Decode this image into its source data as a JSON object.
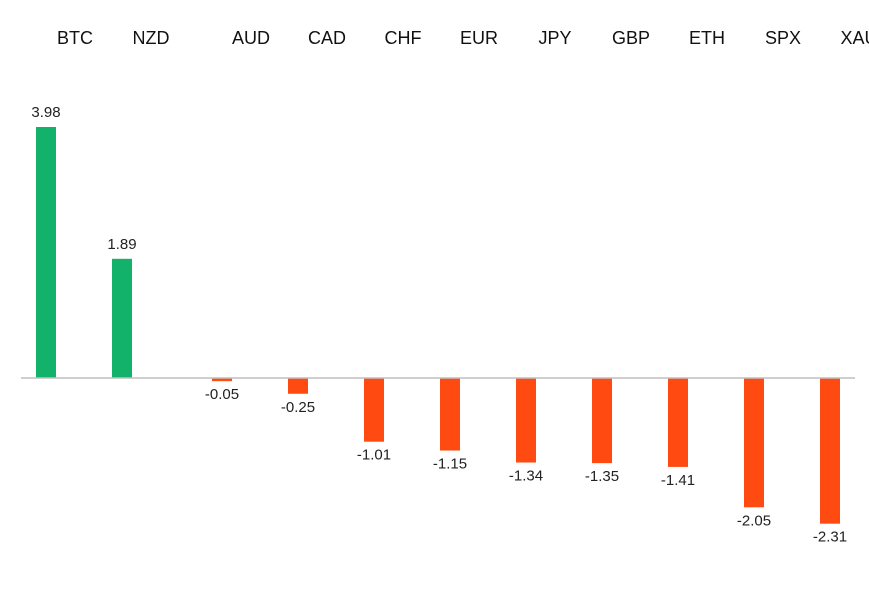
{
  "chart_data": {
    "type": "bar",
    "categories": [
      "BTC",
      "NZD",
      "AUD",
      "CAD",
      "CHF",
      "EUR",
      "JPY",
      "GBP",
      "ETH",
      "SPX",
      "XAU"
    ],
    "values": [
      3.98,
      1.89,
      -0.05,
      -0.25,
      -1.01,
      -1.15,
      -1.34,
      -1.35,
      -1.41,
      -2.05,
      -2.31
    ],
    "value_labels": [
      "3.98",
      "1.89",
      "-0.05",
      "-0.25",
      "-1.01",
      "-1.15",
      "-1.34",
      "-1.35",
      "-1.41",
      "-2.05",
      "-2.31"
    ],
    "title": "",
    "xlabel": "",
    "ylabel": "",
    "ylim": [
      -2.5,
      4.0
    ],
    "grid": false,
    "legend": "none",
    "category_labels_position": "top",
    "colors": {
      "positive": "#12B26B",
      "negative": "#FF4A12",
      "axis": "#BFBFBF"
    }
  }
}
